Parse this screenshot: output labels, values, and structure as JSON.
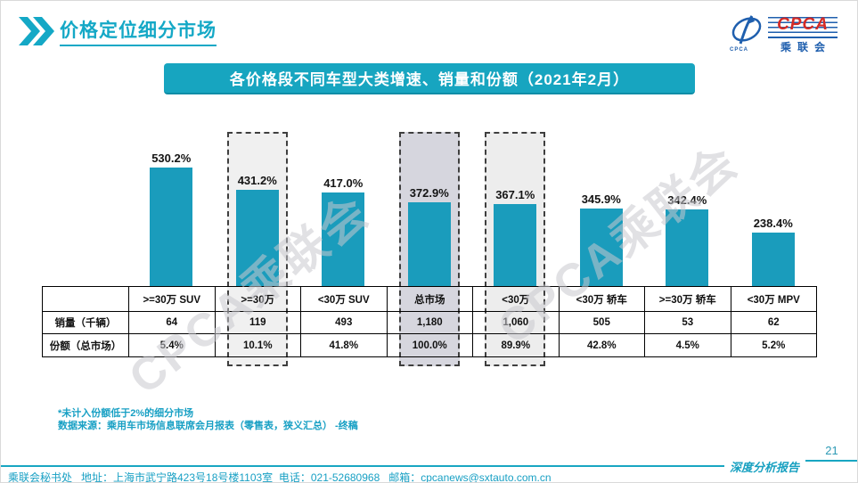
{
  "header": {
    "title": "价格定位细分市场"
  },
  "logo": {
    "acronym": "CPCA",
    "cn_name": "乘联会",
    "swoosh_caption": "CPCA"
  },
  "banner": {
    "title": "各价格段不同车型大类增速、销量和份额（2021年2月）"
  },
  "chart_data": {
    "type": "bar",
    "title": "各价格段不同车型大类增速、销量和份额（2021年2月）",
    "categories": [
      ">=30万 SUV",
      ">=30万",
      "<30万 SUV",
      "总市场",
      "<30万",
      "<30万 轿车",
      ">=30万 轿车",
      "<30万 MPV"
    ],
    "series": [
      {
        "name": "增速",
        "values": [
          530.2,
          431.2,
          417.0,
          372.9,
          367.1,
          345.9,
          342.4,
          238.4
        ],
        "labels": [
          "530.2%",
          "431.2%",
          "417.0%",
          "372.9%",
          "367.1%",
          "345.9%",
          "342.4%",
          "238.4%"
        ]
      },
      {
        "name": "销量（千辆）",
        "values": [
          64,
          119,
          493,
          1180,
          1060,
          505,
          53,
          62
        ],
        "labels": [
          "64",
          "119",
          "493",
          "1,180",
          "1,060",
          "505",
          "53",
          "62"
        ]
      },
      {
        "name": "份额（总市场）",
        "values": [
          5.4,
          10.1,
          41.8,
          100.0,
          89.9,
          42.8,
          4.5,
          5.2
        ],
        "labels": [
          "5.4%",
          "10.1%",
          "41.8%",
          "100.0%",
          "89.9%",
          "42.8%",
          "4.5%",
          "5.2%"
        ]
      }
    ],
    "highlighted_indices": [
      1,
      3,
      4
    ],
    "highlight_fills": {
      "1": "#f0f0f0",
      "3": "#d6d6de",
      "4": "#ededed"
    },
    "bar_color": "#1a9cbc",
    "ylim": [
      0,
      560
    ],
    "grid": false,
    "legend": "none",
    "xlabel": "",
    "ylabel": ""
  },
  "footnotes": {
    "line1": "*未计入份额低于2%的细分市场",
    "line2": "数据来源：乘用车市场信息联席会月报表（零售表，狭义汇总） -终稿"
  },
  "footer": {
    "contact": "乘联会秘书处   地址：上海市武宁路423号18号楼1103室  电话：021-52680968   邮箱：cpcanews@sxtauto.com.cn",
    "report_label": "深度分析报告",
    "page_number": "21"
  },
  "watermark": {
    "text": "CPCA乘联会"
  },
  "colors": {
    "accent_teal": "#17a5c0",
    "bar_teal": "#1a9cbc",
    "logo_red": "#d42b26",
    "logo_blue": "#1f5fae"
  }
}
